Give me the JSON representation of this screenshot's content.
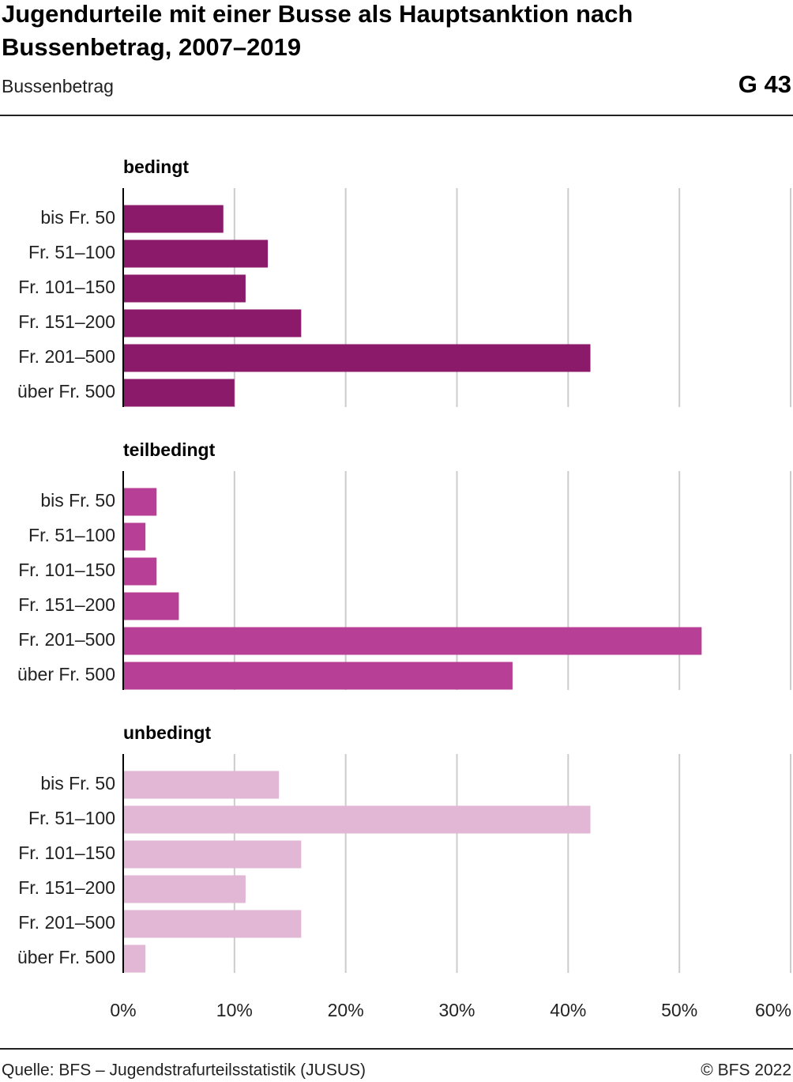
{
  "header": {
    "title_lines": [
      "Jugendurteile mit einer Busse als Hauptsanktion nach",
      "Bussenbetrag, 2007–2019"
    ],
    "subtitle": "Bussenbetrag",
    "code": "G 43"
  },
  "chart_data": {
    "type": "bar",
    "orientation": "horizontal",
    "grid": true,
    "xlim": [
      0,
      60
    ],
    "xticks": [
      {
        "value": 0,
        "label": "0%"
      },
      {
        "value": 10,
        "label": "10%"
      },
      {
        "value": 20,
        "label": "20%"
      },
      {
        "value": 30,
        "label": "30%"
      },
      {
        "value": 40,
        "label": "40%"
      },
      {
        "value": 50,
        "label": "50%"
      },
      {
        "value": 60,
        "label": "60%"
      }
    ],
    "panels": [
      {
        "title": "bedingt",
        "color": "#8b1a6b",
        "categories": [
          "bis Fr. 50",
          "Fr. 51–100",
          "Fr. 101–150",
          "Fr. 151–200",
          "Fr. 201–500",
          "über Fr. 500"
        ],
        "values": [
          9,
          13,
          11,
          16,
          42,
          10
        ]
      },
      {
        "title": "teilbedingt",
        "color": "#b83f96",
        "categories": [
          "bis Fr. 50",
          "Fr. 51–100",
          "Fr. 101–150",
          "Fr. 151–200",
          "Fr. 201–500",
          "über Fr. 500"
        ],
        "values": [
          3,
          2,
          3,
          5,
          52,
          35
        ]
      },
      {
        "title": "unbedingt",
        "color": "#e2b6d5",
        "categories": [
          "bis Fr. 50",
          "Fr. 51–100",
          "Fr. 101–150",
          "Fr. 151–200",
          "Fr. 201–500",
          "über Fr. 500"
        ],
        "values": [
          14,
          42,
          16,
          11,
          16,
          2
        ]
      }
    ]
  },
  "footer": {
    "source": "Quelle: BFS – Jugendstrafurteilsstatistik (JUSUS)",
    "copyright": "© BFS 2022"
  }
}
